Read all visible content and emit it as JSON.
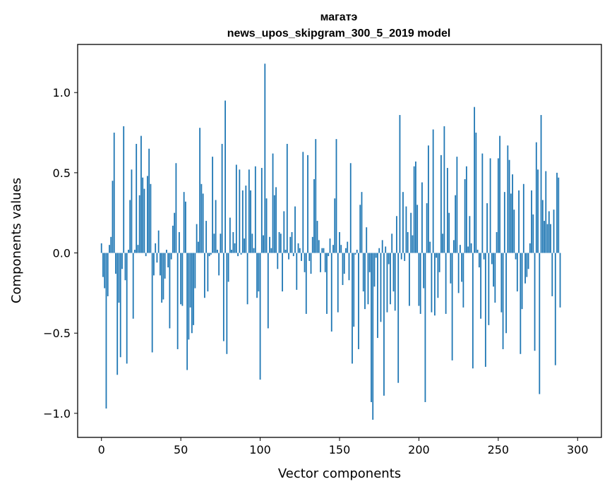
{
  "chart_data": {
    "type": "bar",
    "title": "магатэ",
    "subtitle": "news_upos_skipgram_300_5_2019 model",
    "xlabel": "Vector components",
    "ylabel": "Components values",
    "xlim": [
      -15,
      315
    ],
    "ylim": [
      -1.15,
      1.3
    ],
    "xticks": [
      0,
      50,
      100,
      150,
      200,
      250,
      300
    ],
    "yticks": [
      -1.0,
      -0.5,
      0.0,
      0.5,
      1.0
    ],
    "xtick_labels": [
      "0",
      "50",
      "100",
      "150",
      "200",
      "250",
      "300"
    ],
    "ytick_labels": [
      "−1.0",
      "−0.5",
      "0.0",
      "0.5",
      "1.0"
    ],
    "grid": false,
    "bar_color": "#1f77b4",
    "values": [
      0.06,
      -0.15,
      -0.22,
      -0.97,
      -0.27,
      0.05,
      0.1,
      0.45,
      0.75,
      -0.13,
      -0.76,
      -0.31,
      -0.65,
      -0.1,
      0.79,
      -0.17,
      -0.69,
      0.02,
      0.33,
      0.52,
      -0.41,
      0.02,
      0.68,
      0.05,
      0.36,
      0.73,
      0.47,
      0.4,
      -0.02,
      0.48,
      0.65,
      0.43,
      -0.62,
      -0.14,
      0.06,
      -0.06,
      0.14,
      -0.14,
      -0.31,
      -0.29,
      -0.16,
      0.02,
      -0.09,
      -0.47,
      -0.04,
      0.17,
      0.25,
      0.56,
      -0.6,
      0.13,
      -0.32,
      -0.33,
      0.38,
      0.32,
      -0.73,
      -0.54,
      -0.34,
      -0.5,
      -0.45,
      -0.22,
      0.18,
      0.07,
      0.78,
      0.43,
      0.37,
      -0.28,
      0.2,
      -0.24,
      -0.02,
      -0.01,
      0.6,
      0.12,
      0.33,
      0.02,
      -0.14,
      0.12,
      0.68,
      -0.55,
      0.95,
      -0.63,
      -0.18,
      0.22,
      0.02,
      0.13,
      0.06,
      0.55,
      -0.02,
      0.52,
      -0.01,
      0.39,
      0.09,
      0.42,
      -0.32,
      0.52,
      0.39,
      0.12,
      0.03,
      0.54,
      -0.28,
      -0.24,
      -0.79,
      0.53,
      0.11,
      1.18,
      0.34,
      -0.47,
      0.1,
      0.03,
      0.62,
      0.36,
      0.41,
      -0.1,
      0.13,
      0.12,
      -0.24,
      0.26,
      0.02,
      0.68,
      -0.04,
      0.1,
      0.13,
      -0.02,
      0.29,
      -0.23,
      0.06,
      0.03,
      -0.05,
      0.63,
      -0.12,
      -0.38,
      0.61,
      -0.05,
      -0.13,
      0.1,
      0.46,
      0.71,
      0.2,
      0.08,
      -0.12,
      0.03,
      0.03,
      -0.12,
      -0.38,
      -0.02,
      0.09,
      -0.49,
      0.05,
      0.34,
      0.71,
      -0.37,
      0.13,
      0.05,
      -0.2,
      -0.13,
      0.03,
      0.07,
      -0.17,
      0.56,
      -0.69,
      -0.46,
      -0.01,
      0.02,
      -0.6,
      0.3,
      0.38,
      -0.24,
      -0.35,
      0.16,
      -0.32,
      -0.12,
      -0.93,
      -1.04,
      -0.21,
      -0.03,
      -0.53,
      0.03,
      -0.43,
      0.08,
      -0.89,
      0.04,
      -0.37,
      -0.07,
      -0.32,
      0.12,
      -0.24,
      -0.36,
      0.23,
      -0.81,
      0.86,
      -0.04,
      0.38,
      -0.05,
      0.29,
      0.13,
      -0.33,
      0.25,
      0.11,
      0.54,
      0.57,
      0.3,
      -0.33,
      -0.38,
      0.44,
      -0.22,
      -0.93,
      0.31,
      0.67,
      0.07,
      -0.37,
      0.77,
      -0.39,
      -0.03,
      -0.28,
      -0.12,
      0.61,
      0.12,
      0.79,
      -0.38,
      0.53,
      0.25,
      -0.19,
      -0.67,
      0.08,
      0.36,
      0.6,
      -0.25,
      0.05,
      -0.18,
      -0.34,
      0.46,
      0.54,
      0.04,
      0.23,
      0.06,
      -0.72,
      0.91,
      0.75,
      0.02,
      -0.09,
      -0.41,
      0.62,
      -0.04,
      -0.71,
      0.31,
      -0.45,
      0.59,
      -0.07,
      -0.21,
      -0.31,
      0.13,
      0.59,
      0.73,
      -0.37,
      -0.6,
      0.38,
      -0.5,
      0.67,
      0.58,
      0.37,
      0.49,
      0.27,
      -0.04,
      -0.24,
      0.39,
      -0.63,
      -0.35,
      0.43,
      -0.19,
      -0.15,
      -0.1,
      0.06,
      0.39,
      0.24,
      -0.61,
      0.69,
      0.52,
      -0.88,
      0.86,
      0.33,
      0.2,
      0.51,
      0.18,
      0.26,
      0.18,
      -0.27,
      0.27,
      -0.7,
      0.5,
      0.47,
      -0.34
    ]
  }
}
